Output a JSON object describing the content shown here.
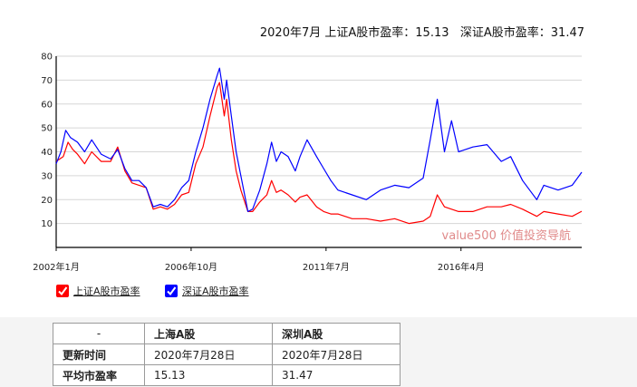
{
  "header": {
    "title": "2020年7月 上证A股市盈率：15.13   深证A股市盈率：31.47"
  },
  "watermark": "value500 价值投资导航",
  "legend": [
    {
      "label": "上证A股市盈率",
      "color": "#ff0000",
      "icon": "checkbox-checked-icon"
    },
    {
      "label": "深证A股市盈率",
      "color": "#0000ff",
      "icon": "checkbox-checked-icon"
    }
  ],
  "table": {
    "header": [
      "-",
      "上海A股",
      "深圳A股"
    ],
    "rows": [
      [
        "更新时间",
        "2020年7月28日",
        "2020年7月28日"
      ],
      [
        "平均市盈率",
        "15.13",
        "31.47"
      ]
    ]
  },
  "chart_data": {
    "type": "line",
    "title": "2020年7月 上证A股市盈率：15.13   深证A股市盈率：31.47",
    "xlabel": "",
    "ylabel": "",
    "x_ticks": [
      "2002年1月",
      "2006年10月",
      "2011年7月",
      "2016年4月"
    ],
    "ylim": [
      0,
      80
    ],
    "y_ticks": [
      10,
      20,
      30,
      40,
      50,
      60,
      70,
      80
    ],
    "grid": true,
    "x_range": [
      "2002-01",
      "2020-07"
    ],
    "series": [
      {
        "name": "上证A股市盈率",
        "color": "#ff0000",
        "points": [
          [
            "2002-01",
            36
          ],
          [
            "2002-04",
            38
          ],
          [
            "2002-06",
            44
          ],
          [
            "2002-08",
            41
          ],
          [
            "2002-10",
            39
          ],
          [
            "2003-01",
            35
          ],
          [
            "2003-04",
            40
          ],
          [
            "2003-08",
            36
          ],
          [
            "2003-12",
            36
          ],
          [
            "2004-03",
            42
          ],
          [
            "2004-06",
            32
          ],
          [
            "2004-09",
            27
          ],
          [
            "2004-12",
            26
          ],
          [
            "2005-03",
            25
          ],
          [
            "2005-06",
            16
          ],
          [
            "2005-09",
            17
          ],
          [
            "2005-12",
            16
          ],
          [
            "2006-03",
            18
          ],
          [
            "2006-06",
            22
          ],
          [
            "2006-09",
            23
          ],
          [
            "2006-12",
            35
          ],
          [
            "2007-03",
            42
          ],
          [
            "2007-06",
            55
          ],
          [
            "2007-09",
            67
          ],
          [
            "2007-10",
            69
          ],
          [
            "2007-12",
            55
          ],
          [
            "2008-01",
            62
          ],
          [
            "2008-03",
            45
          ],
          [
            "2008-05",
            32
          ],
          [
            "2008-07",
            24
          ],
          [
            "2008-10",
            15
          ],
          [
            "2008-12",
            15
          ],
          [
            "2009-03",
            19
          ],
          [
            "2009-06",
            22
          ],
          [
            "2009-08",
            28
          ],
          [
            "2009-10",
            23
          ],
          [
            "2009-12",
            24
          ],
          [
            "2010-03",
            22
          ],
          [
            "2010-06",
            19
          ],
          [
            "2010-08",
            21
          ],
          [
            "2010-11",
            22
          ],
          [
            "2011-03",
            17
          ],
          [
            "2011-06",
            15
          ],
          [
            "2011-09",
            14
          ],
          [
            "2011-12",
            14
          ],
          [
            "2012-06",
            12
          ],
          [
            "2012-12",
            12
          ],
          [
            "2013-06",
            11
          ],
          [
            "2013-12",
            12
          ],
          [
            "2014-06",
            10
          ],
          [
            "2014-12",
            11
          ],
          [
            "2015-03",
            13
          ],
          [
            "2015-06",
            22
          ],
          [
            "2015-09",
            17
          ],
          [
            "2015-12",
            16
          ],
          [
            "2016-03",
            15
          ],
          [
            "2016-09",
            15
          ],
          [
            "2017-03",
            17
          ],
          [
            "2017-09",
            17
          ],
          [
            "2018-01",
            18
          ],
          [
            "2018-06",
            16
          ],
          [
            "2018-12",
            13
          ],
          [
            "2019-03",
            15
          ],
          [
            "2019-09",
            14
          ],
          [
            "2020-03",
            13
          ],
          [
            "2020-07",
            15.13
          ]
        ]
      },
      {
        "name": "深证A股市盈率",
        "color": "#0000ff",
        "points": [
          [
            "2002-01",
            35
          ],
          [
            "2002-03",
            40
          ],
          [
            "2002-05",
            49
          ],
          [
            "2002-07",
            46
          ],
          [
            "2002-10",
            44
          ],
          [
            "2003-01",
            40
          ],
          [
            "2003-04",
            45
          ],
          [
            "2003-08",
            39
          ],
          [
            "2003-12",
            37
          ],
          [
            "2004-03",
            41
          ],
          [
            "2004-06",
            33
          ],
          [
            "2004-09",
            28
          ],
          [
            "2004-12",
            28
          ],
          [
            "2005-03",
            25
          ],
          [
            "2005-06",
            17
          ],
          [
            "2005-09",
            18
          ],
          [
            "2005-12",
            17
          ],
          [
            "2006-03",
            20
          ],
          [
            "2006-06",
            25
          ],
          [
            "2006-09",
            28
          ],
          [
            "2006-12",
            40
          ],
          [
            "2007-03",
            50
          ],
          [
            "2007-06",
            62
          ],
          [
            "2007-09",
            72
          ],
          [
            "2007-10",
            75
          ],
          [
            "2007-12",
            62
          ],
          [
            "2008-01",
            70
          ],
          [
            "2008-03",
            55
          ],
          [
            "2008-05",
            40
          ],
          [
            "2008-07",
            30
          ],
          [
            "2008-10",
            15
          ],
          [
            "2008-12",
            16
          ],
          [
            "2009-03",
            24
          ],
          [
            "2009-06",
            35
          ],
          [
            "2009-08",
            44
          ],
          [
            "2009-10",
            36
          ],
          [
            "2009-12",
            40
          ],
          [
            "2010-03",
            38
          ],
          [
            "2010-06",
            32
          ],
          [
            "2010-08",
            38
          ],
          [
            "2010-11",
            45
          ],
          [
            "2011-03",
            38
          ],
          [
            "2011-06",
            33
          ],
          [
            "2011-09",
            28
          ],
          [
            "2011-12",
            24
          ],
          [
            "2012-06",
            22
          ],
          [
            "2012-12",
            20
          ],
          [
            "2013-06",
            24
          ],
          [
            "2013-12",
            26
          ],
          [
            "2014-06",
            25
          ],
          [
            "2014-12",
            29
          ],
          [
            "2015-03",
            45
          ],
          [
            "2015-06",
            62
          ],
          [
            "2015-09",
            40
          ],
          [
            "2015-12",
            53
          ],
          [
            "2016-03",
            40
          ],
          [
            "2016-09",
            42
          ],
          [
            "2017-03",
            43
          ],
          [
            "2017-09",
            36
          ],
          [
            "2018-01",
            38
          ],
          [
            "2018-06",
            28
          ],
          [
            "2018-12",
            20
          ],
          [
            "2019-03",
            26
          ],
          [
            "2019-09",
            24
          ],
          [
            "2020-03",
            26
          ],
          [
            "2020-07",
            31.47
          ]
        ]
      }
    ]
  }
}
